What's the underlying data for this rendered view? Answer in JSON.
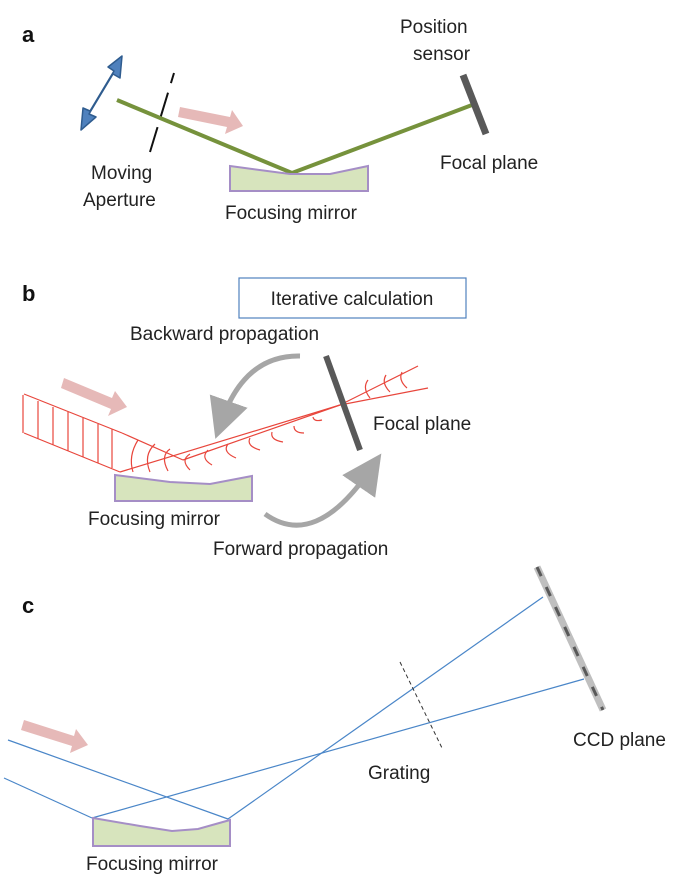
{
  "panels": {
    "a": {
      "label": "a",
      "moving_aperture_line1": "Moving",
      "moving_aperture_line2": "Aperture",
      "focusing_mirror": "Focusing mirror",
      "position_sensor_line1": "Position",
      "position_sensor_line2": "sensor",
      "focal_plane": "Focal plane"
    },
    "b": {
      "label": "b",
      "iterative_calculation": "Iterative calculation",
      "backward_propagation": "Backward propagation",
      "focal_plane": "Focal plane",
      "focusing_mirror": "Focusing mirror",
      "forward_propagation": "Forward propagation"
    },
    "c": {
      "label": "c",
      "ccd_plane": "CCD plane",
      "grating": "Grating",
      "focusing_mirror": "Focusing mirror"
    }
  },
  "colors": {
    "beam_green": "#76923c",
    "mirror_fill": "#d7e4bd",
    "mirror_edge": "#a58ec6",
    "arrow_pink": "#e6b9b8",
    "arrow_blue": "#4f81bd",
    "ray_red": "#e8463c",
    "ray_blue": "#4a86c8",
    "sensor_dark": "#595959",
    "ccd_gray": "#bfbfbf",
    "cycle_arrow_gray": "#a6a6a6",
    "box_border": "#4f81bd"
  }
}
